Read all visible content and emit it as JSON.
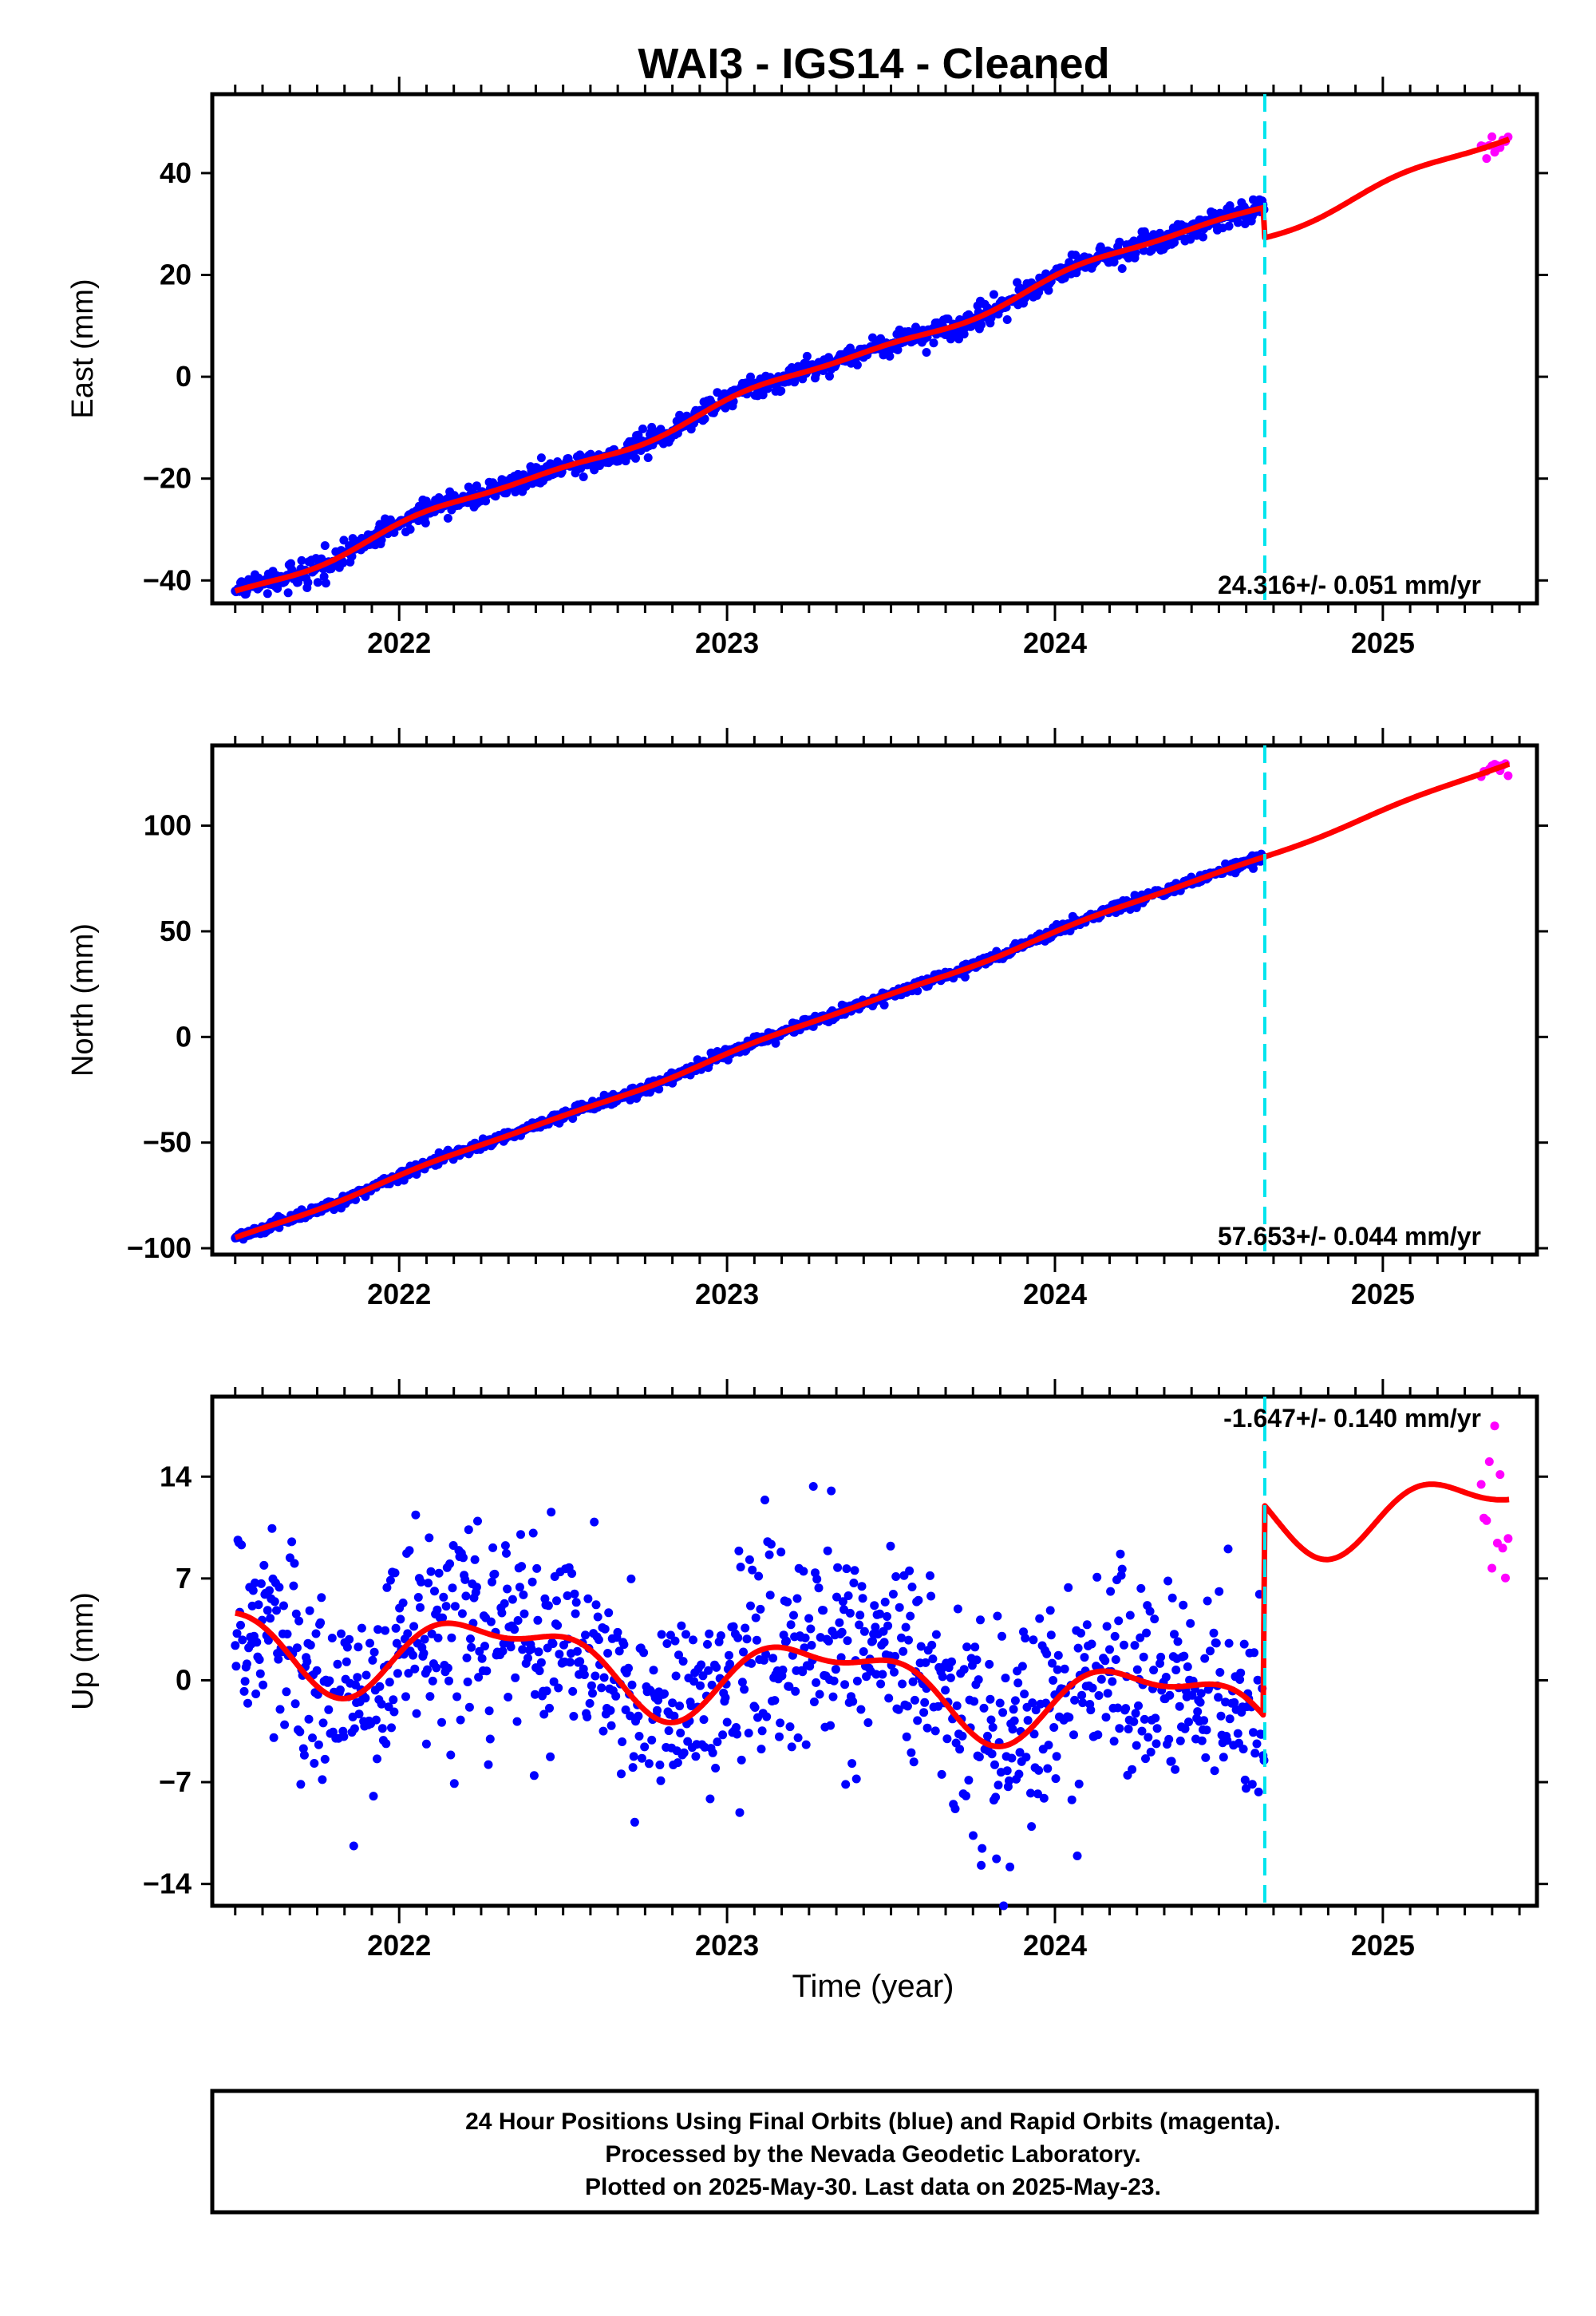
{
  "title": "WAI3  - IGS14 - Cleaned",
  "xlabel": "Time (year)",
  "footer": {
    "line1": "24 Hour Positions Using Final Orbits (blue) and Rapid Orbits (magenta).",
    "line2": "Processed by the Nevada Geodetic Laboratory.",
    "line3": "Plotted on 2025-May-30. Last data on 2025-May-23."
  },
  "colors": {
    "final": "#0000ff",
    "rapid": "#ff00ff",
    "model": "#ff0000",
    "break": "#00e5ee"
  },
  "chart_data": [
    {
      "type": "scatter",
      "ylabel": "East (mm)",
      "rate": "24.316+/- 0.051 mm/yr",
      "xlim": [
        2021.43,
        2025.47
      ],
      "ylim": [
        -44.5,
        55.5
      ],
      "yticks": [
        -40,
        -20,
        0,
        20,
        40
      ],
      "yticklabels": [
        "−40",
        "−20",
        "0",
        "20",
        "40"
      ],
      "xticks": [
        2022,
        2023,
        2024,
        2025
      ],
      "break_year": 2024.64,
      "final_range": [
        2021.5,
        2024.64
      ],
      "rapid_range": [
        2025.3,
        2025.39
      ],
      "model": {
        "intercept_at_2023": -5.5,
        "rate": 24.316,
        "annual_amp": 1.2,
        "annual_phase": 0.5,
        "semi_amp": 0.5,
        "semi_phase": 1.2,
        "offset": -6.0,
        "noise": 1.1
      }
    },
    {
      "type": "scatter",
      "ylabel": "North (mm)",
      "rate": "57.653+/- 0.044 mm/yr",
      "xlim": [
        2021.43,
        2025.47
      ],
      "ylim": [
        -103,
        138
      ],
      "yticks": [
        -100,
        -50,
        0,
        50,
        100
      ],
      "yticklabels": [
        "−100",
        "−50",
        "0",
        "50",
        "100"
      ],
      "xticks": [
        2022,
        2023,
        2024,
        2025
      ],
      "break_year": 2024.64,
      "final_range": [
        2021.5,
        2024.64
      ],
      "rapid_range": [
        2025.3,
        2025.39
      ],
      "model": {
        "intercept_at_2023": -8.5,
        "rate": 57.653,
        "annual_amp": 1.0,
        "annual_phase": 0.3,
        "semi_amp": 0.4,
        "semi_phase": 0.9,
        "offset": 0.0,
        "noise": 1.3
      }
    },
    {
      "type": "scatter",
      "ylabel": "Up (mm)",
      "rate": "-1.647+/- 0.140 mm/yr",
      "xlim": [
        2021.43,
        2025.47
      ],
      "ylim": [
        -15.5,
        19.5
      ],
      "yticks": [
        -14,
        -7,
        0,
        7,
        14
      ],
      "yticklabels": [
        "−14",
        "−7",
        "0",
        "7",
        "14"
      ],
      "xticks": [
        2022,
        2023,
        2024,
        2025
      ],
      "break_year": 2024.64,
      "final_range": [
        2021.5,
        2024.64
      ],
      "rapid_range": [
        2025.3,
        2025.39
      ],
      "model": {
        "intercept_at_2023": 0.5,
        "rate": -1.647,
        "annual_amp": 2.5,
        "annual_phase": -0.4,
        "semi_amp": 1.2,
        "semi_phase": 0.6,
        "offset": 14.5,
        "noise": 3.6
      }
    }
  ]
}
